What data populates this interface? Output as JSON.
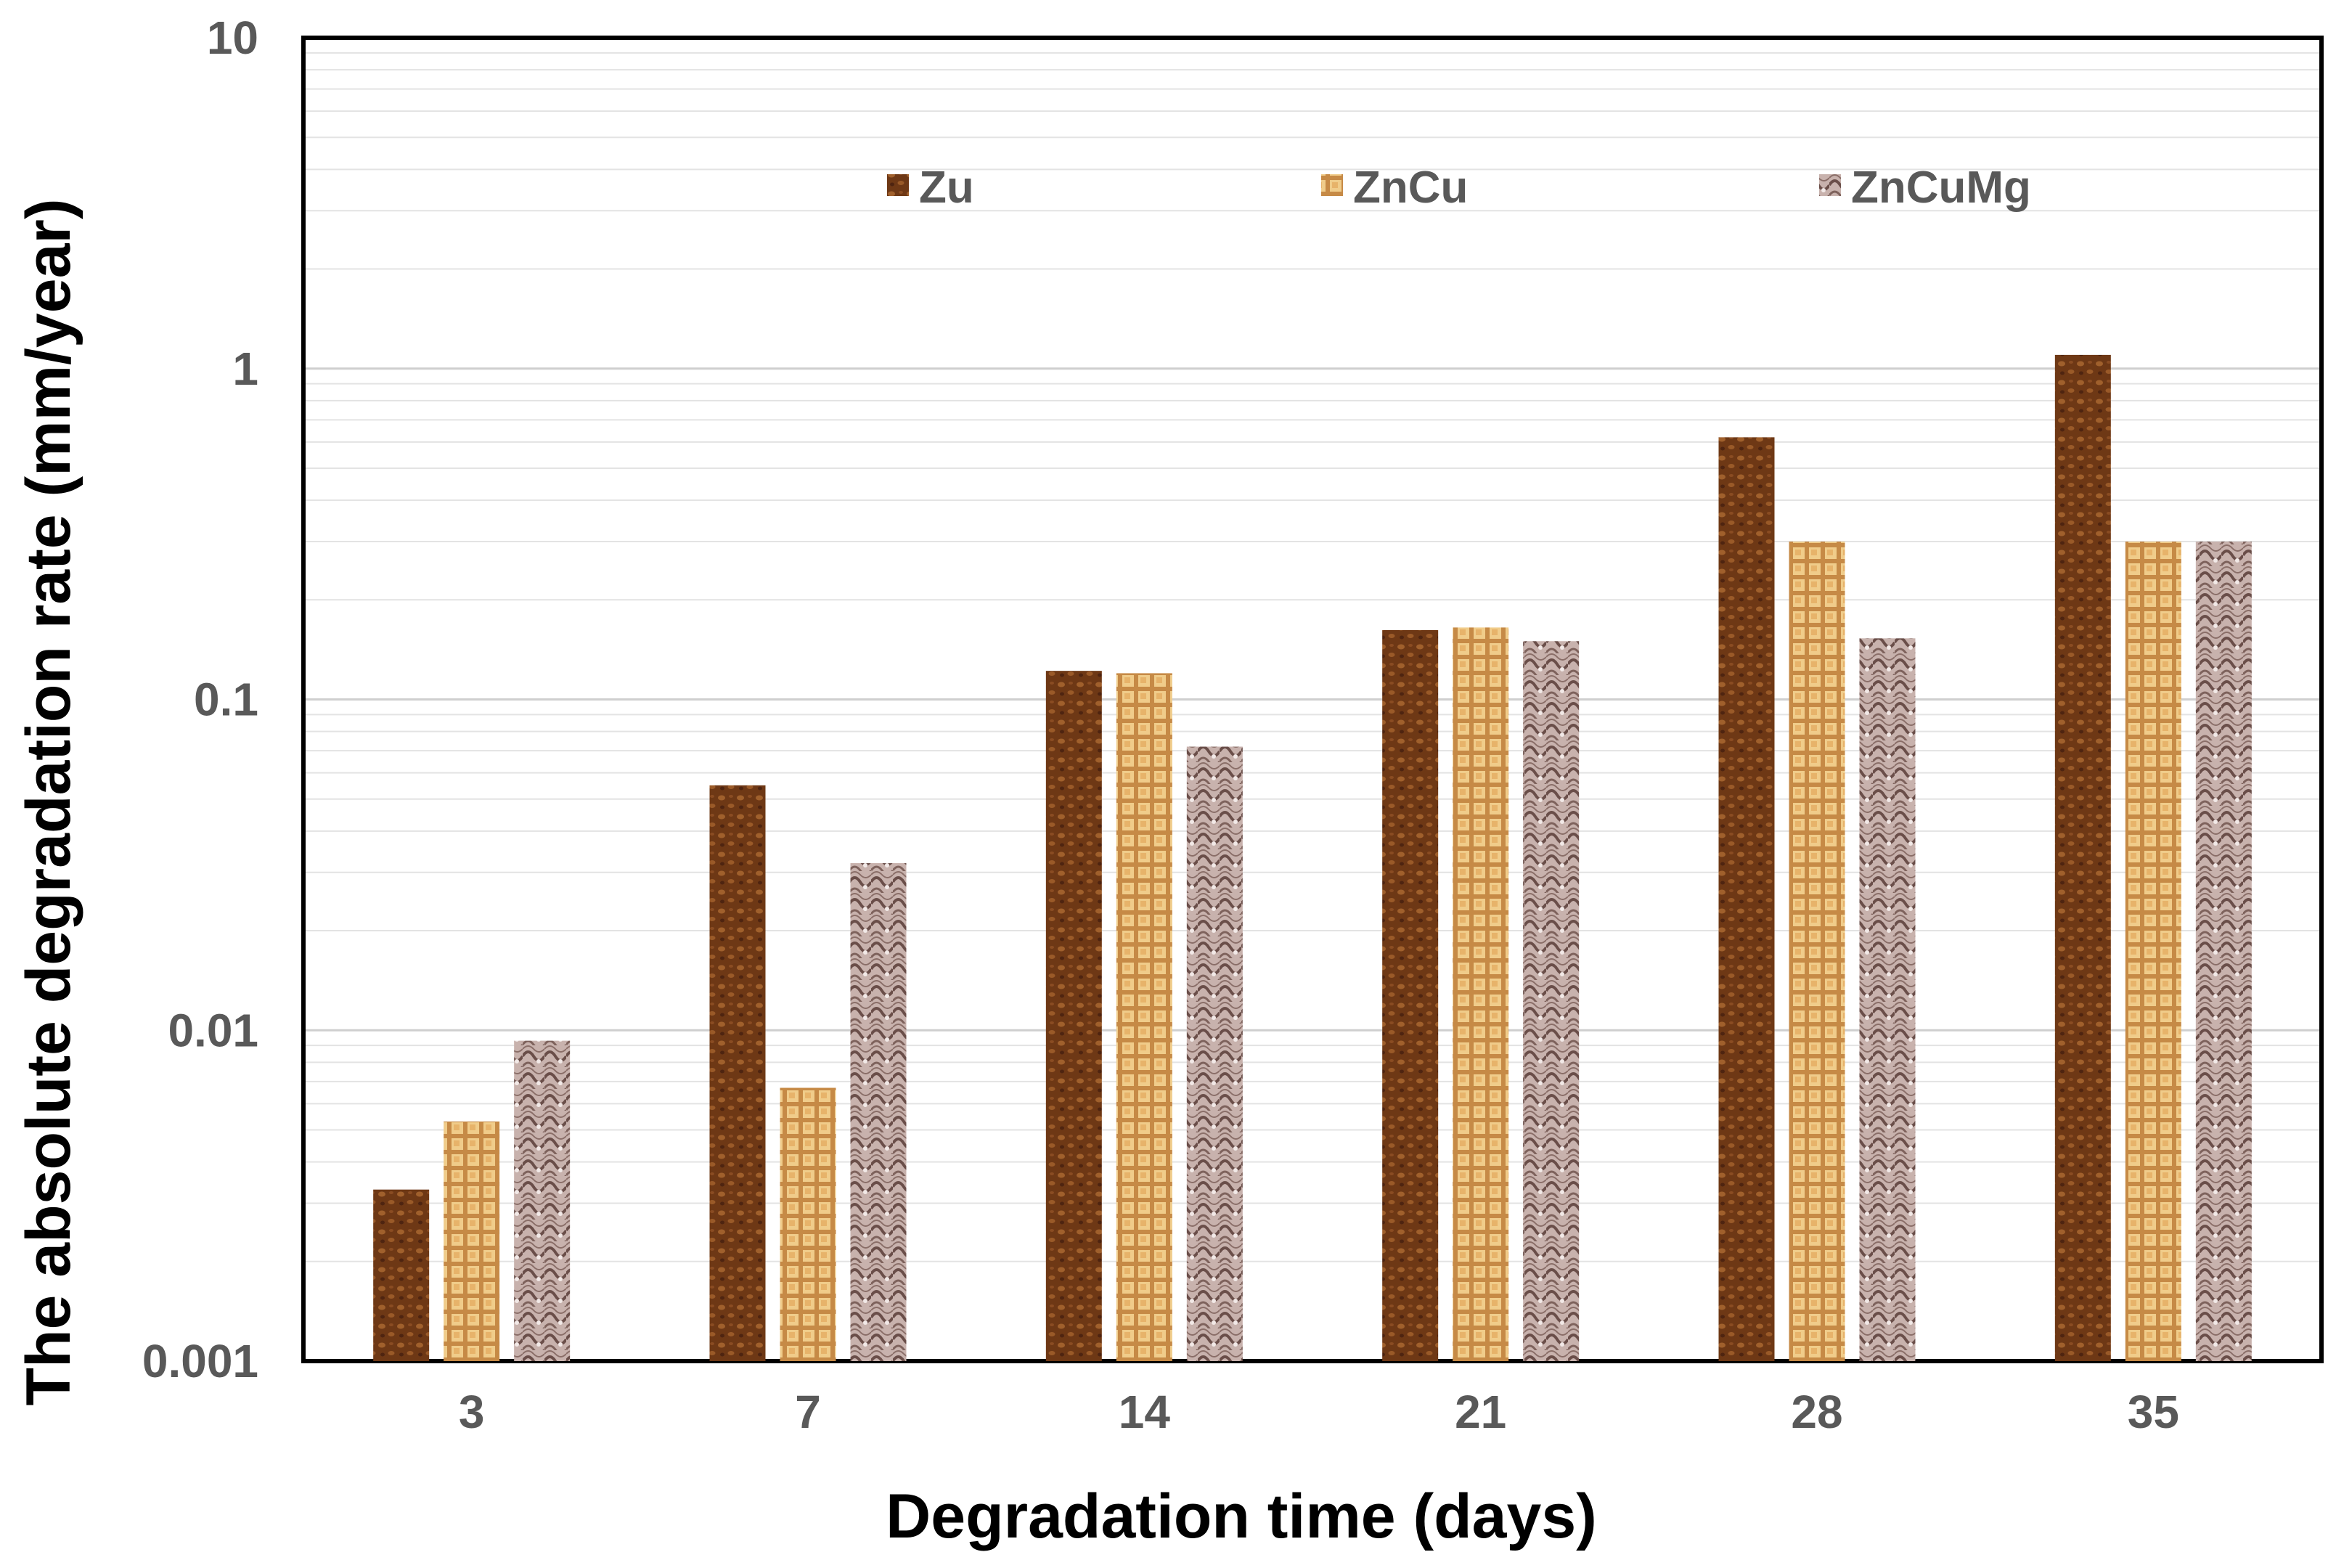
{
  "chart_data": {
    "type": "bar",
    "title": "",
    "xlabel": "Degradation time (days)",
    "ylabel": "The absolute degradation rate (mm/year)",
    "yscale": "log",
    "ylim": [
      0.001,
      10
    ],
    "yticks": [
      "0.001",
      "0.01",
      "0.1",
      "1",
      "10"
    ],
    "categories": [
      "3",
      "7",
      "14",
      "21",
      "28",
      "35"
    ],
    "grid": true,
    "legend_position": "top",
    "series": [
      {
        "name": "Zu",
        "color": "#7a3f1a",
        "values": [
          0.0033,
          0.055,
          0.122,
          0.162,
          0.62,
          1.1
        ]
      },
      {
        "name": "ZnCu",
        "color": "#d9a561",
        "values": [
          0.0053,
          0.0067,
          0.12,
          0.165,
          0.3,
          0.3
        ]
      },
      {
        "name": "ZnCuMg",
        "color": "#a38a85",
        "values": [
          0.0093,
          0.032,
          0.072,
          0.15,
          0.153,
          0.3
        ]
      }
    ]
  }
}
